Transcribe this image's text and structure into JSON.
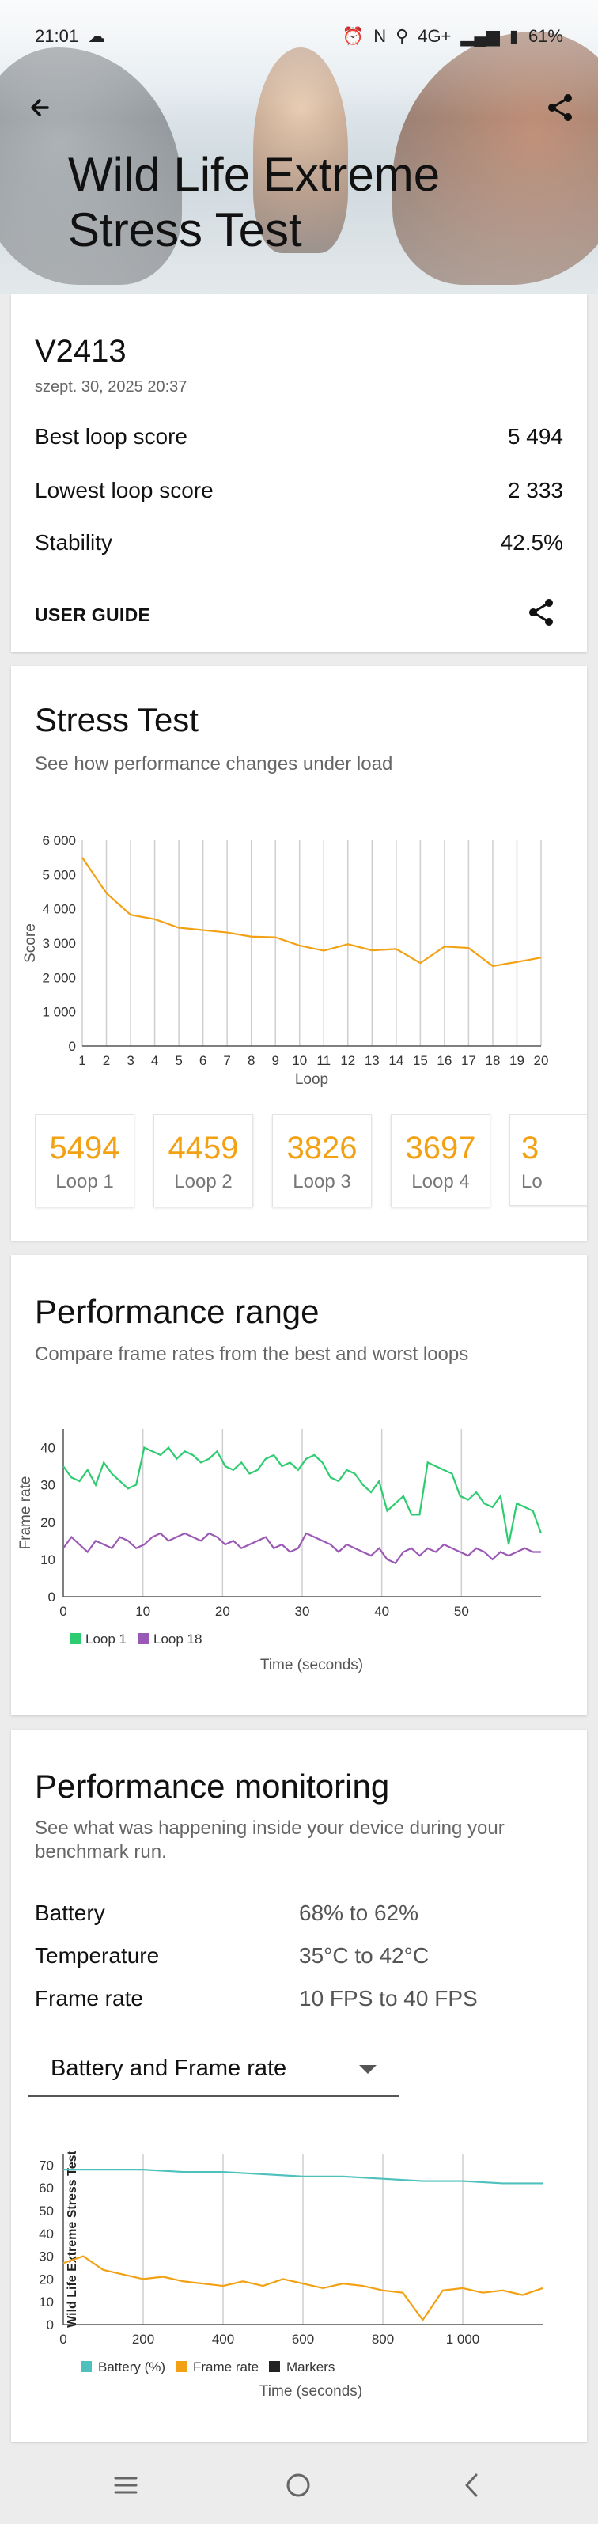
{
  "status_bar": {
    "time": "21:01",
    "net": "4G+",
    "battery": "61%"
  },
  "header": {
    "title": "Wild Life Extreme Stress Test"
  },
  "summary": {
    "device": "V2413",
    "date": "szept. 30, 2025 20:37",
    "rows": [
      {
        "label": "Best loop score",
        "value": "5 494"
      },
      {
        "label": "Lowest loop score",
        "value": "2 333"
      },
      {
        "label": "Stability",
        "value": "42.5%"
      }
    ],
    "user_guide_label": "USER GUIDE"
  },
  "stress_test": {
    "title": "Stress Test",
    "subtitle": "See how performance changes under load",
    "loop_cards": [
      {
        "value": "5494",
        "label": "Loop 1"
      },
      {
        "value": "4459",
        "label": "Loop 2"
      },
      {
        "value": "3826",
        "label": "Loop 3"
      },
      {
        "value": "3697",
        "label": "Loop 4"
      },
      {
        "value": "3",
        "label": "Lo"
      }
    ]
  },
  "performance_range": {
    "title": "Performance range",
    "subtitle": "Compare frame rates from the best and worst loops"
  },
  "performance_monitoring": {
    "title": "Performance monitoring",
    "subtitle": "See what was happening inside your device during your benchmark run.",
    "rows": [
      {
        "label": "Battery",
        "value": "68% to 62%"
      },
      {
        "label": "Temperature",
        "value": "35°C to 42°C"
      },
      {
        "label": "Frame rate",
        "value": "10 FPS to 40 FPS"
      }
    ],
    "dropdown_selected": "Battery and Frame rate"
  },
  "colors": {
    "accent_orange": "#f2a114",
    "loop1_green": "#2ecc71",
    "loop18_purple": "#9b59b6",
    "battery_teal": "#4fc1bd"
  },
  "chart_data": [
    {
      "type": "line",
      "title": "",
      "xlabel": "Loop",
      "ylabel": "Score",
      "x": [
        1,
        2,
        3,
        4,
        5,
        6,
        7,
        8,
        9,
        10,
        11,
        12,
        13,
        14,
        15,
        16,
        17,
        18,
        19,
        20
      ],
      "ticks_y": [
        "0",
        "1 000",
        "2 000",
        "3 000",
        "4 000",
        "5 000",
        "6 000"
      ],
      "ylim": [
        0,
        6000
      ],
      "series": [
        {
          "values": [
            5494,
            4459,
            3826,
            3697,
            3450,
            3380,
            3310,
            3190,
            3170,
            2930,
            2780,
            2970,
            2790,
            2830,
            2420,
            2900,
            2860,
            2333,
            2450,
            2580
          ]
        }
      ]
    },
    {
      "type": "line",
      "xlabel": "Time (seconds)",
      "ylabel": "Frame rate",
      "xlim": [
        0,
        60
      ],
      "ylim": [
        0,
        45
      ],
      "ticks_x": [
        "0",
        "10",
        "20",
        "30",
        "40",
        "50"
      ],
      "ticks_y": [
        "0",
        "10",
        "20",
        "30",
        "40"
      ],
      "series": [
        {
          "name": "Loop 1",
          "values": [
            35,
            32,
            31,
            34,
            30,
            36,
            33,
            31,
            29,
            30,
            40,
            39,
            38,
            40,
            37,
            39,
            38,
            36,
            37,
            39,
            35,
            34,
            36,
            33,
            34,
            37,
            38,
            35,
            36,
            34,
            37,
            38,
            36,
            32,
            31,
            34,
            33,
            30,
            28,
            31,
            23,
            25,
            27,
            22,
            22,
            36,
            35,
            34,
            33,
            27,
            26,
            28,
            25,
            24,
            27,
            14,
            25,
            24,
            23,
            17
          ]
        },
        {
          "name": "Loop 18",
          "values": [
            13,
            16,
            14,
            12,
            15,
            14,
            13,
            16,
            15,
            13,
            14,
            16,
            17,
            15,
            16,
            17,
            16,
            15,
            17,
            16,
            14,
            15,
            13,
            14,
            15,
            16,
            13,
            14,
            12,
            13,
            17,
            16,
            15,
            14,
            12,
            14,
            13,
            12,
            11,
            13,
            10,
            9,
            12,
            13,
            11,
            13,
            12,
            14,
            13,
            12,
            11,
            13,
            12,
            10,
            12,
            11,
            12,
            13,
            12,
            12
          ]
        }
      ]
    },
    {
      "type": "line",
      "xlabel": "Time (seconds)",
      "ylabel": "Wild Life Extreme Stress Test",
      "xlim": [
        0,
        1200
      ],
      "ylim": [
        0,
        75
      ],
      "ticks_x": [
        "0",
        "200",
        "400",
        "600",
        "800",
        "1 000"
      ],
      "ticks_y": [
        "0",
        "10",
        "20",
        "30",
        "40",
        "50",
        "60",
        "70"
      ],
      "series": [
        {
          "name": "Battery (%)",
          "x": [
            0,
            100,
            200,
            300,
            400,
            500,
            600,
            700,
            800,
            900,
            1000,
            1100,
            1200
          ],
          "values": [
            68,
            68,
            68,
            67,
            67,
            66,
            65,
            65,
            64,
            63,
            63,
            62,
            62
          ]
        },
        {
          "name": "Frame rate",
          "x": [
            0,
            50,
            100,
            150,
            200,
            250,
            300,
            350,
            400,
            450,
            500,
            550,
            600,
            650,
            700,
            750,
            800,
            850,
            900,
            950,
            1000,
            1050,
            1100,
            1150,
            1200
          ],
          "values": [
            27,
            30,
            24,
            22,
            20,
            21,
            19,
            18,
            17,
            19,
            17,
            20,
            18,
            16,
            18,
            17,
            15,
            14,
            2,
            15,
            16,
            14,
            15,
            13,
            16
          ]
        },
        {
          "name": "Markers",
          "values": []
        }
      ]
    }
  ]
}
